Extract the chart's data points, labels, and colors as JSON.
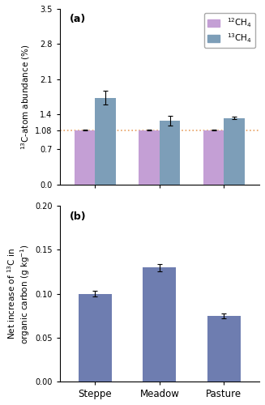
{
  "categories": [
    "Steppe",
    "Meadow",
    "Pasture"
  ],
  "panel_a": {
    "ch12_values": [
      1.08,
      1.08,
      1.08
    ],
    "ch12_errors": [
      0.01,
      0.01,
      0.01
    ],
    "ch13_values": [
      1.73,
      1.27,
      1.32
    ],
    "ch13_errors": [
      0.14,
      0.1,
      0.025
    ],
    "ch12_color": "#c49fd5",
    "ch13_color": "#7d9eb8",
    "ylabel": "$^{13}$C-atom abundance (%)",
    "ylim": [
      0,
      3.5
    ],
    "yticks": [
      0.0,
      0.7,
      1.08,
      1.4,
      2.1,
      2.8,
      3.5
    ],
    "ytick_labels": [
      "0.0",
      "0.7",
      "1.08",
      "1.4",
      "2.1",
      "2.8",
      "3.5"
    ],
    "hline_y": 1.08,
    "hline_color": "#e8a060",
    "legend_labels": [
      "$^{12}$CH$_4$",
      "$^{13}$CH$_4$"
    ],
    "panel_label": "(a)"
  },
  "panel_b": {
    "values": [
      0.1,
      0.13,
      0.075
    ],
    "errors": [
      0.003,
      0.004,
      0.003
    ],
    "bar_color": "#6e7db0",
    "ylabel": "Net increase of $^{13}$C in\norganic carbon (g kg$^{-1}$)",
    "ylim": [
      0,
      0.2
    ],
    "yticks": [
      0.0,
      0.05,
      0.1,
      0.15,
      0.2
    ],
    "ytick_labels": [
      "0.00",
      "0.05",
      "0.10",
      "0.15",
      "0.20"
    ],
    "panel_label": "(b)"
  },
  "bar_width": 0.32,
  "group_positions": [
    0.0,
    1.0,
    2.0
  ],
  "fig_bg": "#f0f0f0"
}
